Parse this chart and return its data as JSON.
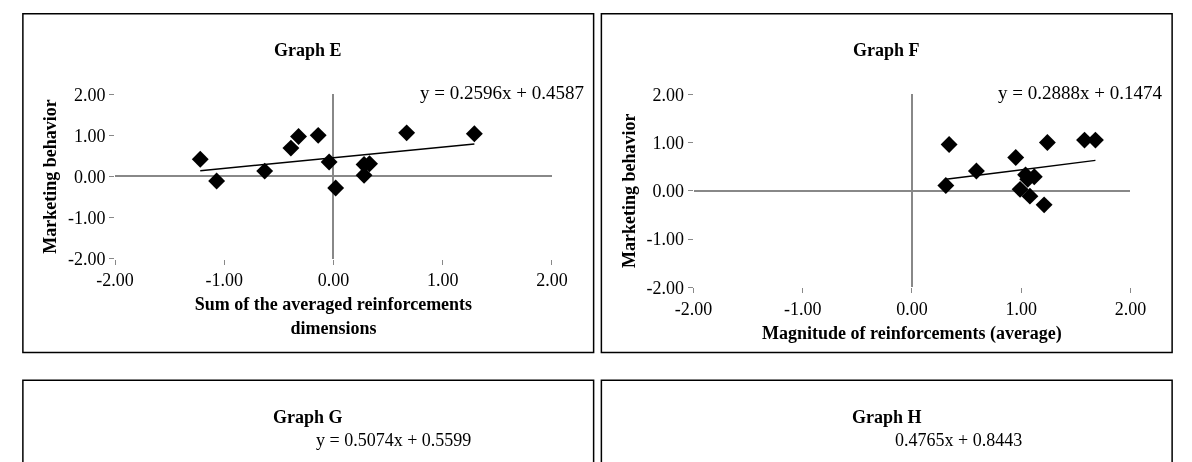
{
  "chart_data": [
    {
      "type": "scatter",
      "title": "Graph E",
      "xlabel": "Sum of the averaged reinforcements dimensions",
      "ylabel": "Marketing behavior",
      "annotations": [
        "y = 0.2596x + 0.4587"
      ],
      "xlim": [
        -2,
        2
      ],
      "ylim": [
        -2,
        2
      ],
      "xticks": [
        {
          "value": -2,
          "label": "-2.00"
        },
        {
          "value": -1,
          "label": "-1.00"
        },
        {
          "value": 0,
          "label": "0.00"
        },
        {
          "value": 1,
          "label": "1.00"
        },
        {
          "value": 2,
          "label": "2.00"
        }
      ],
      "yticks": [
        {
          "value": -2,
          "label": "-2.00"
        },
        {
          "value": -1,
          "label": "-1.00"
        },
        {
          "value": 0,
          "label": "0.00"
        },
        {
          "value": 1,
          "label": "1.00"
        },
        {
          "value": 2,
          "label": "2.00"
        }
      ],
      "series": [
        {
          "type": "scatter",
          "marker": "diamond",
          "color": "#000000",
          "x": [
            -1.22,
            -1.07,
            -0.63,
            -0.39,
            -0.32,
            -0.14,
            -0.04,
            0.02,
            0.28,
            0.28,
            0.33,
            0.67,
            1.29
          ],
          "values": [
            0.42,
            -0.11,
            0.13,
            0.69,
            0.97,
            1.0,
            0.35,
            -0.28,
            0.29,
            0.03,
            0.31,
            1.06,
            1.04
          ]
        },
        {
          "type": "line",
          "color": "#000000",
          "x": [
            -1.22,
            1.29
          ],
          "values": [
            0.14,
            0.79
          ]
        }
      ]
    },
    {
      "type": "scatter",
      "title": "Graph F",
      "xlabel": "Magnitude of reinforcements (average)",
      "ylabel": "Marketing behavior",
      "annotations": [
        "y = 0.2888x + 0.1474"
      ],
      "xlim": [
        -2,
        2
      ],
      "ylim": [
        -2,
        2
      ],
      "xticks": [
        {
          "value": -2,
          "label": "-2.00"
        },
        {
          "value": -1,
          "label": "-1.00"
        },
        {
          "value": 0,
          "label": "0.00"
        },
        {
          "value": 1,
          "label": "1.00"
        },
        {
          "value": 2,
          "label": "2.00"
        }
      ],
      "yticks": [
        {
          "value": -2,
          "label": "-2.00"
        },
        {
          "value": -1,
          "label": "-1.00"
        },
        {
          "value": 0,
          "label": "0.00"
        },
        {
          "value": 1,
          "label": "1.00"
        },
        {
          "value": 2,
          "label": "2.00"
        }
      ],
      "series": [
        {
          "type": "scatter",
          "marker": "diamond",
          "color": "#000000",
          "x": [
            0.31,
            0.34,
            0.59,
            0.95,
            0.99,
            1.04,
            1.06,
            1.08,
            1.12,
            1.21,
            1.24,
            1.58,
            1.68
          ],
          "values": [
            0.11,
            0.96,
            0.41,
            0.69,
            0.03,
            0.33,
            0.24,
            -0.11,
            0.29,
            -0.29,
            1.0,
            1.05,
            1.05
          ]
        },
        {
          "type": "line",
          "color": "#000000",
          "x": [
            0.31,
            1.68
          ],
          "values": [
            0.24,
            0.63
          ]
        }
      ]
    },
    {
      "type": "other",
      "title": "Graph G",
      "annotations": [
        "y = 0.5074x + 0.5599"
      ]
    },
    {
      "type": "other",
      "title": "Graph H",
      "annotations": [
        "0.4765x + 0.8443"
      ]
    }
  ]
}
